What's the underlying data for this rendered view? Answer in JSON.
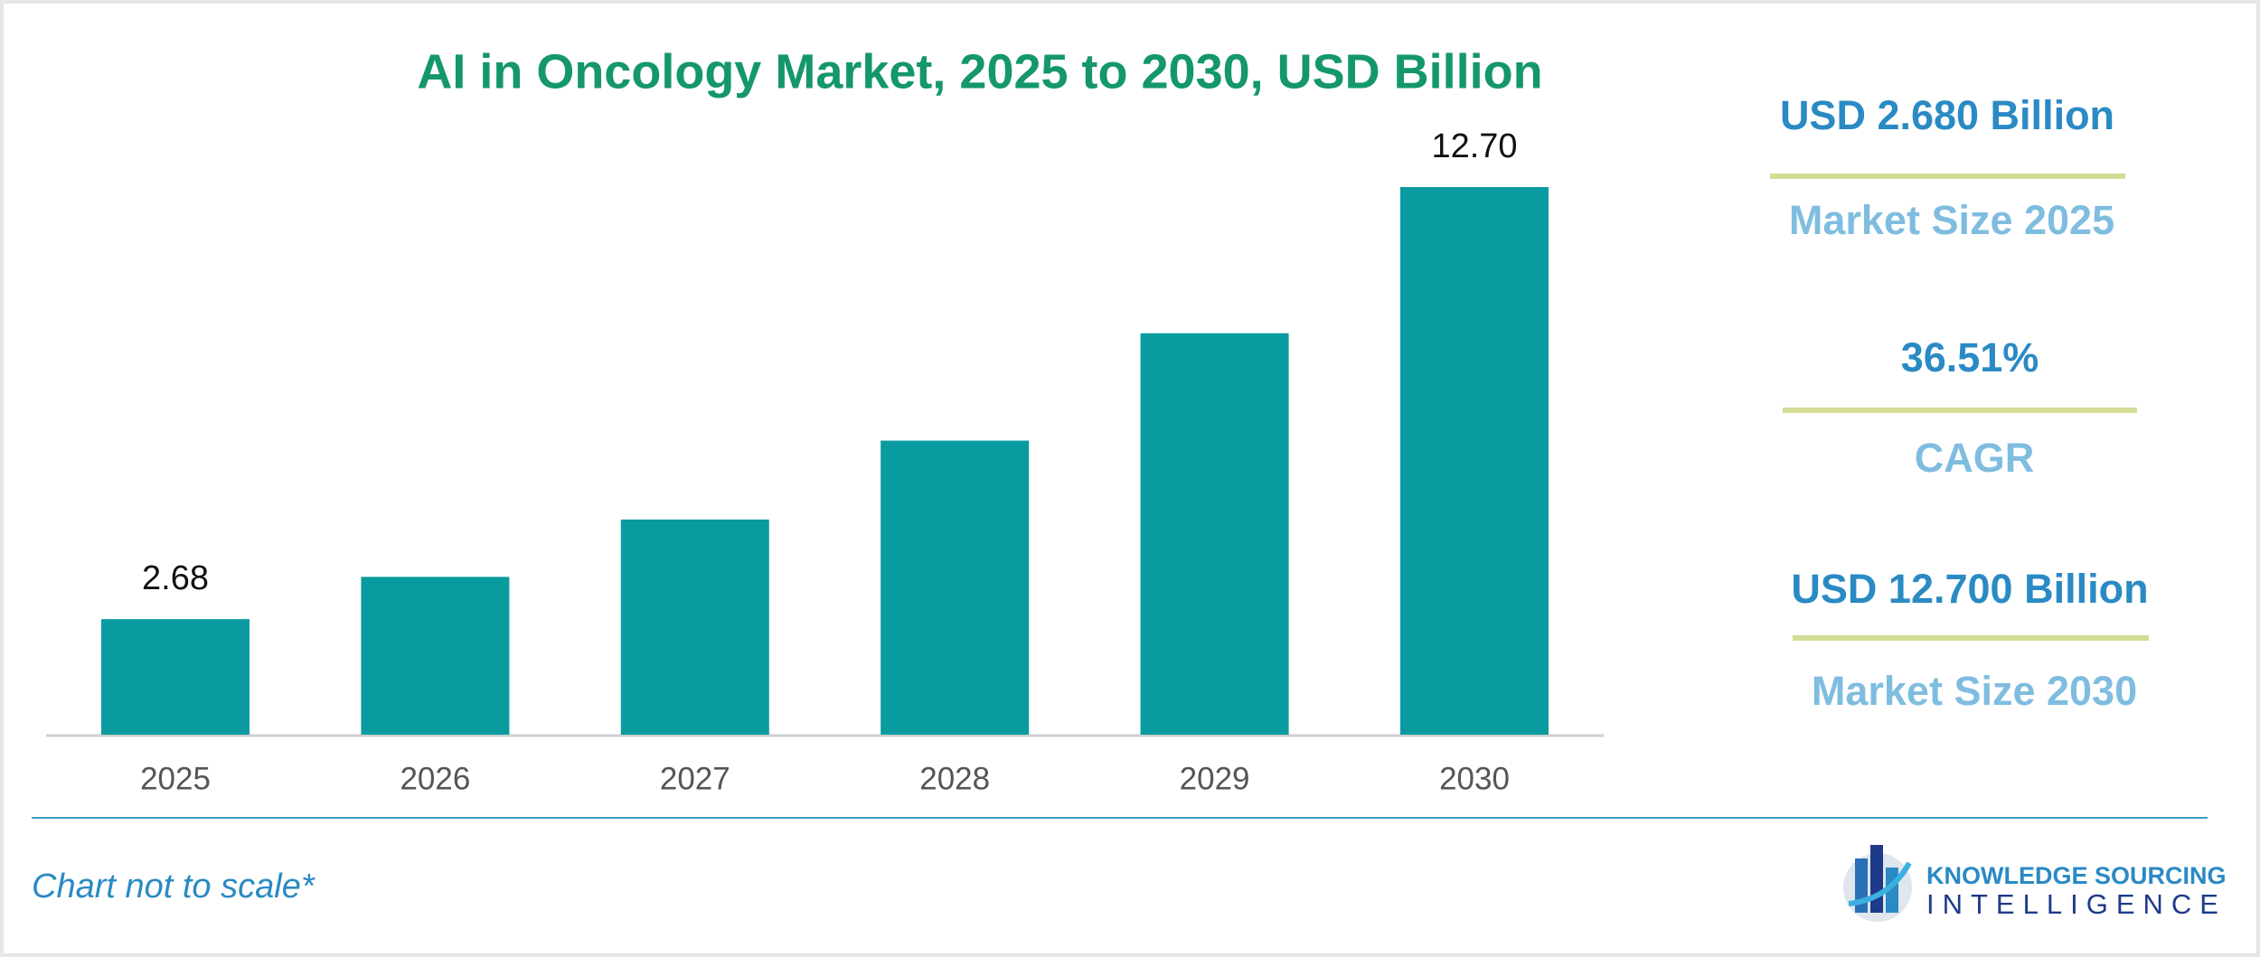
{
  "chart_data": {
    "type": "bar",
    "title": "AI in Oncology Market, 2025 to 2030, USD Billion",
    "categories": [
      "2025",
      "2026",
      "2027",
      "2028",
      "2029",
      "2030"
    ],
    "values": [
      2.68,
      3.66,
      4.99,
      6.82,
      9.31,
      12.7
    ],
    "value_labels": [
      "2.68",
      null,
      null,
      null,
      null,
      "12.70"
    ],
    "color": "#0a9ba0"
  },
  "highlights": [
    {
      "value": "USD 2.680 Billion",
      "label": "Market Size 2025"
    },
    {
      "value": "36.51%",
      "label": "CAGR"
    },
    {
      "value": "USD 12.700 Billion",
      "label": "Market Size 2030"
    }
  ],
  "footer": {
    "note": "Chart not to scale*",
    "logo": [
      "KNOWLEDGE SOURCING",
      "INTELLIGENCE"
    ]
  }
}
